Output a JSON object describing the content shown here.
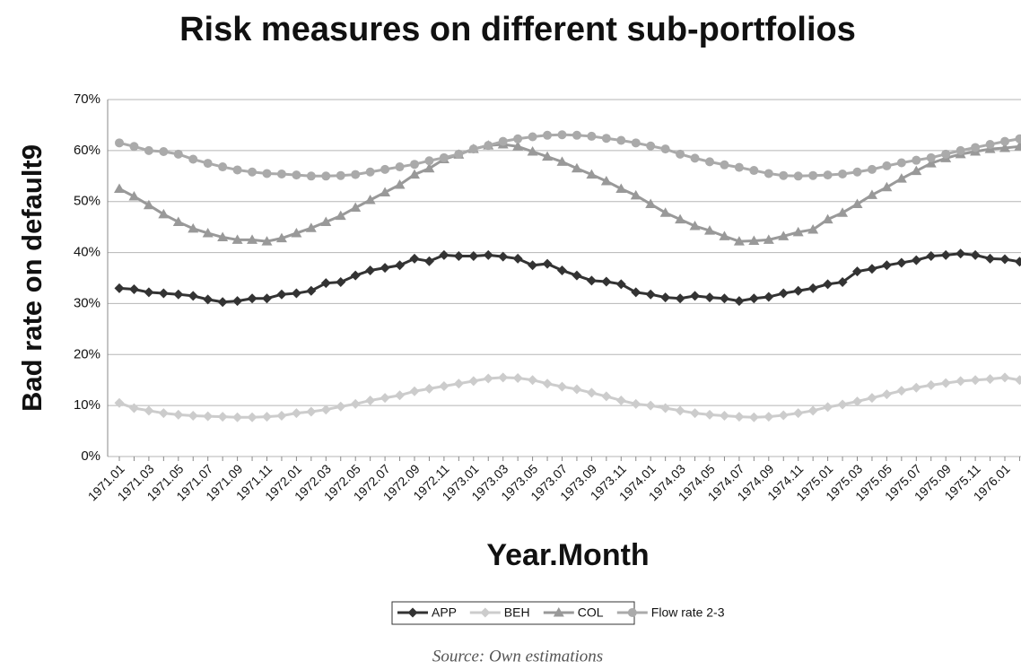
{
  "chart_data": {
    "type": "line",
    "title": "Risk measures on different sub-portfolios",
    "x_label": "Year.Month",
    "y_label": "Bad rate on default9",
    "source": "Source: Own estimations",
    "categories": [
      "1971.01",
      null,
      "1971.03",
      null,
      "1971.05",
      null,
      "1971.07",
      null,
      "1971.09",
      null,
      "1971.11",
      null,
      "1972.01",
      null,
      "1972.03",
      null,
      "1972.05",
      null,
      "1972.07",
      null,
      "1972.09",
      null,
      "1972.11",
      null,
      "1973.01",
      null,
      "1973.03",
      null,
      "1973.05",
      null,
      "1973.07",
      null,
      "1973.09",
      null,
      "1973.11",
      null,
      "1974.01",
      null,
      "1974.03",
      null,
      "1974.05",
      null,
      "1974.07",
      null,
      "1974.09",
      null,
      "1974.11",
      null,
      "1975.01",
      null,
      "1975.03",
      null,
      "1975.05",
      null,
      "1975.07",
      null,
      "1975.09",
      null,
      "1975.11",
      null,
      "1976.01",
      null
    ],
    "series": [
      {
        "name": "APP",
        "color": "#333333",
        "marker": "diamond",
        "values": [
          33.0,
          32.8,
          32.2,
          32.0,
          31.8,
          31.5,
          30.8,
          30.3,
          30.5,
          31.0,
          31.0,
          31.8,
          32.0,
          32.5,
          34.0,
          34.2,
          35.5,
          36.5,
          37.0,
          37.5,
          38.8,
          38.3,
          39.5,
          39.3,
          39.3,
          39.5,
          39.2,
          38.8,
          37.5,
          37.8,
          36.5,
          35.5,
          34.5,
          34.3,
          33.8,
          32.2,
          31.8,
          31.2,
          31.0,
          31.5,
          31.2,
          31.0,
          30.5,
          31.0,
          31.3,
          32.0,
          32.5,
          33.0,
          33.8,
          34.2,
          36.3,
          36.8,
          37.5,
          38.0,
          38.5,
          39.3,
          39.5,
          39.8,
          39.5,
          38.8,
          38.7,
          38.2
        ]
      },
      {
        "name": "BEH",
        "color": "#cccccc",
        "marker": "diamond",
        "values": [
          10.5,
          9.5,
          9.0,
          8.5,
          8.2,
          8.0,
          7.9,
          7.8,
          7.7,
          7.7,
          7.8,
          8.0,
          8.5,
          8.8,
          9.2,
          9.8,
          10.3,
          11.0,
          11.5,
          12.0,
          12.8,
          13.3,
          13.8,
          14.3,
          14.8,
          15.3,
          15.5,
          15.4,
          15.0,
          14.3,
          13.7,
          13.2,
          12.5,
          11.8,
          11.0,
          10.3,
          10.0,
          9.5,
          9.0,
          8.5,
          8.2,
          8.0,
          7.8,
          7.7,
          7.8,
          8.1,
          8.5,
          9.0,
          9.7,
          10.2,
          10.8,
          11.5,
          12.2,
          12.9,
          13.5,
          14.0,
          14.4,
          14.8,
          15.0,
          15.2,
          15.5,
          15.0
        ]
      },
      {
        "name": "COL",
        "color": "#999999",
        "marker": "triangle",
        "values": [
          52.5,
          51.0,
          49.3,
          47.5,
          46.0,
          44.7,
          43.8,
          43.0,
          42.5,
          42.5,
          42.2,
          42.8,
          43.8,
          44.8,
          46.0,
          47.2,
          48.8,
          50.3,
          51.8,
          53.3,
          55.3,
          56.5,
          58.3,
          59.2,
          60.3,
          61.0,
          61.2,
          60.8,
          59.8,
          58.8,
          57.8,
          56.5,
          55.3,
          54.0,
          52.5,
          51.2,
          49.5,
          47.8,
          46.5,
          45.2,
          44.3,
          43.2,
          42.2,
          42.3,
          42.5,
          43.2,
          44.0,
          44.5,
          46.5,
          47.8,
          49.5,
          51.3,
          52.8,
          54.5,
          56.0,
          57.5,
          58.5,
          59.3,
          59.8,
          60.3,
          60.5,
          60.8
        ]
      },
      {
        "name": "Flow rate 2-3",
        "color": "#aaaaaa",
        "marker": "circle",
        "values": [
          61.5,
          60.8,
          60.0,
          59.8,
          59.3,
          58.3,
          57.5,
          56.8,
          56.2,
          55.8,
          55.5,
          55.4,
          55.2,
          55.0,
          55.0,
          55.1,
          55.3,
          55.8,
          56.3,
          56.8,
          57.3,
          58.0,
          58.6,
          59.3,
          60.3,
          61.0,
          61.8,
          62.3,
          62.7,
          63.0,
          63.1,
          63.0,
          62.8,
          62.4,
          62.0,
          61.5,
          60.9,
          60.3,
          59.3,
          58.5,
          57.8,
          57.2,
          56.7,
          56.1,
          55.5,
          55.1,
          55.0,
          55.1,
          55.2,
          55.4,
          55.8,
          56.3,
          57.0,
          57.6,
          58.1,
          58.6,
          59.3,
          60.0,
          60.6,
          61.2,
          61.8,
          62.3
        ]
      }
    ],
    "ylim": [
      0,
      70
    ],
    "yticks": [
      {
        "value": 0,
        "label": "0%"
      },
      {
        "value": 10,
        "label": "10%"
      },
      {
        "value": 20,
        "label": "20%"
      },
      {
        "value": 30,
        "label": "30%"
      },
      {
        "value": 40,
        "label": "40%"
      },
      {
        "value": 50,
        "label": "50%"
      },
      {
        "value": 60,
        "label": "60%"
      },
      {
        "value": 70,
        "label": "70%"
      }
    ],
    "grid": true,
    "legend": "bottom"
  }
}
